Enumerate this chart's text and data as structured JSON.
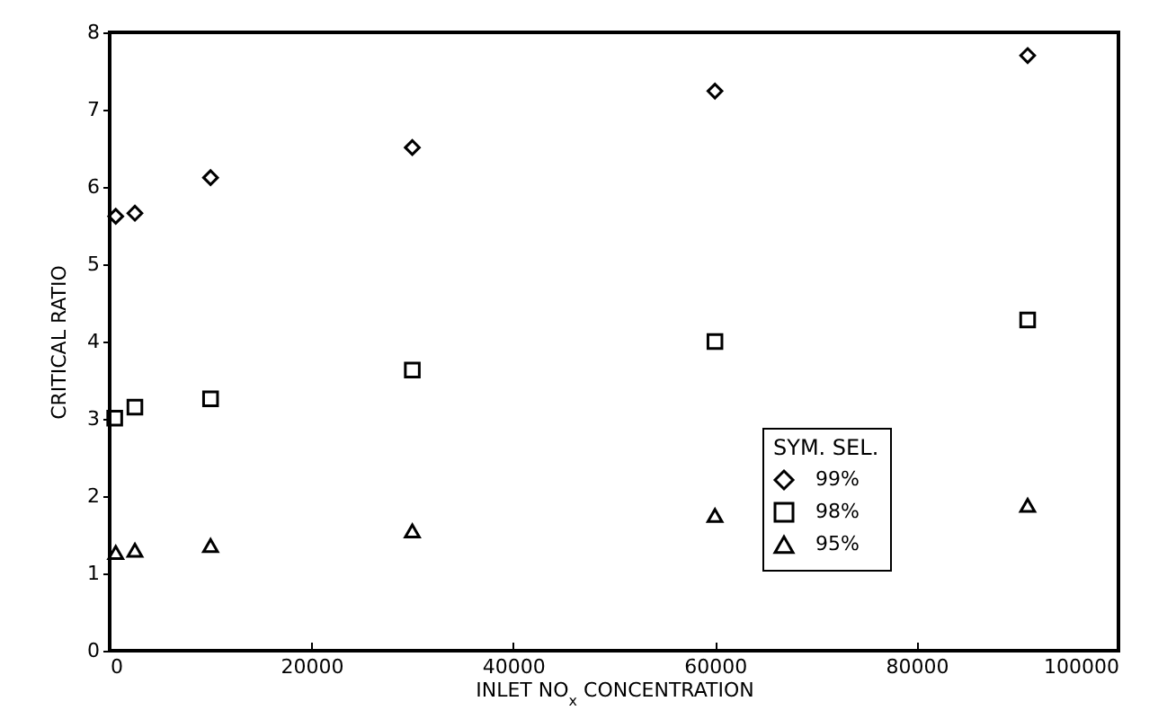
{
  "chart_data": {
    "type": "scatter",
    "xlabel": "INLET NO$_{x}$ CONCENTRATION",
    "ylabel": "CRITICAL RATIO",
    "legend_title": "SYM. SEL.",
    "legend": "bottom right",
    "x": [
      500,
      2500,
      10000,
      30000,
      60000,
      91000
    ],
    "series": [
      {
        "name": "99%",
        "color": "#000000",
        "marker": "diamond",
        "x": [
          600,
          2500,
          10000,
          30000,
          60000,
          91000
        ],
        "values": [
          5.62,
          5.66,
          6.12,
          6.51,
          7.24,
          7.7
        ]
      },
      {
        "name": "98%",
        "color": "#000000",
        "marker": "square",
        "values": [
          3.01,
          3.15,
          3.26,
          3.63,
          4.0,
          4.28
        ]
      },
      {
        "name": "95%",
        "color": "#000000",
        "marker": "triangle",
        "x": [
          600,
          2500,
          10000,
          30000,
          60000,
          91000
        ],
        "values": [
          1.27,
          1.3,
          1.36,
          1.55,
          1.75,
          1.88
        ]
      }
    ],
    "xlim": [
      0,
      100000
    ],
    "xticks": [
      0,
      20000,
      40000,
      60000,
      80000,
      100000
    ],
    "ylim": [
      0,
      8
    ],
    "yticks": [
      0,
      1,
      2,
      3,
      4,
      5,
      6,
      7,
      8
    ],
    "grid": false
  }
}
